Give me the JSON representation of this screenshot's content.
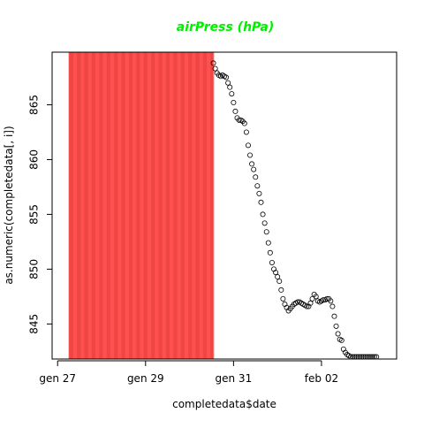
{
  "chart_data": {
    "type": "scatter",
    "title": "airPress (hPa)",
    "title_color": "#00ee00",
    "xlabel": "completedata$date",
    "ylabel": "as.numeric(completedata[, i])",
    "xlim": [
      "2016-01-26T21:00",
      "2016-02-03T17:00"
    ],
    "ylim": [
      841.8,
      869.8
    ],
    "x_ticks": [
      {
        "date": "2016-01-27",
        "label": "gen 27"
      },
      {
        "date": "2016-01-29",
        "label": "gen 29"
      },
      {
        "date": "2016-01-31",
        "label": "gen 31"
      },
      {
        "date": "2016-02-02",
        "label": "feb 02"
      }
    ],
    "y_ticks": [
      845,
      850,
      855,
      860,
      865
    ],
    "missing_band": {
      "from": "2016-01-27T06:00",
      "to": "2016-01-30T13:00",
      "color": "#ff5050",
      "stripe_color": "#e03c3c"
    },
    "grid": false,
    "legend": "none",
    "series": [
      {
        "marker": "open-circle",
        "color": "#000000",
        "x": [
          "2016-01-30T13:00",
          "2016-01-30T14:00",
          "2016-01-30T15:00",
          "2016-01-30T16:00",
          "2016-01-30T17:00",
          "2016-01-30T18:00",
          "2016-01-30T19:00",
          "2016-01-30T20:00",
          "2016-01-30T21:00",
          "2016-01-30T22:00",
          "2016-01-30T23:00",
          "2016-01-31T00:00",
          "2016-01-31T01:00",
          "2016-01-31T02:00",
          "2016-01-31T03:00",
          "2016-01-31T04:00",
          "2016-01-31T05:00",
          "2016-01-31T06:00",
          "2016-01-31T07:00",
          "2016-01-31T08:00",
          "2016-01-31T09:00",
          "2016-01-31T10:00",
          "2016-01-31T11:00",
          "2016-01-31T12:00",
          "2016-01-31T13:00",
          "2016-01-31T14:00",
          "2016-01-31T15:00",
          "2016-01-31T16:00",
          "2016-01-31T17:00",
          "2016-01-31T18:00",
          "2016-01-31T19:00",
          "2016-01-31T20:00",
          "2016-01-31T21:00",
          "2016-01-31T22:00",
          "2016-01-31T23:00",
          "2016-02-01T00:00",
          "2016-02-01T01:00",
          "2016-02-01T02:00",
          "2016-02-01T03:00",
          "2016-02-01T04:00",
          "2016-02-01T05:00",
          "2016-02-01T06:00",
          "2016-02-01T07:00",
          "2016-02-01T08:00",
          "2016-02-01T09:00",
          "2016-02-01T10:00",
          "2016-02-01T11:00",
          "2016-02-01T12:00",
          "2016-02-01T13:00",
          "2016-02-01T14:00",
          "2016-02-01T15:00",
          "2016-02-01T16:00",
          "2016-02-01T17:00",
          "2016-02-01T18:00",
          "2016-02-01T19:00",
          "2016-02-01T20:00",
          "2016-02-01T21:00",
          "2016-02-01T22:00",
          "2016-02-01T23:00",
          "2016-02-02T00:00",
          "2016-02-02T01:00",
          "2016-02-02T02:00",
          "2016-02-02T03:00",
          "2016-02-02T04:00",
          "2016-02-02T05:00",
          "2016-02-02T06:00",
          "2016-02-02T07:00",
          "2016-02-02T08:00",
          "2016-02-02T09:00",
          "2016-02-02T10:00",
          "2016-02-02T11:00",
          "2016-02-02T12:00",
          "2016-02-02T13:00",
          "2016-02-02T14:00",
          "2016-02-02T15:00",
          "2016-02-02T16:00",
          "2016-02-02T17:00",
          "2016-02-02T18:00",
          "2016-02-02T19:00",
          "2016-02-02T20:00",
          "2016-02-02T21:00",
          "2016-02-02T22:00",
          "2016-02-02T23:00",
          "2016-02-03T00:00",
          "2016-02-03T01:00",
          "2016-02-03T02:00",
          "2016-02-03T03:00",
          "2016-02-03T04:00",
          "2016-02-03T05:00",
          "2016-02-03T06:00"
        ],
        "y": [
          868.8,
          868.3,
          867.9,
          867.7,
          867.6,
          867.7,
          867.6,
          867.5,
          867.0,
          866.6,
          866.0,
          865.2,
          864.4,
          863.8,
          863.6,
          863.6,
          863.5,
          863.3,
          862.5,
          861.3,
          860.4,
          859.6,
          859.1,
          858.4,
          857.6,
          856.9,
          856.1,
          855.0,
          854.2,
          853.4,
          852.4,
          851.5,
          850.6,
          850.0,
          849.7,
          849.3,
          848.9,
          848.1,
          847.3,
          846.8,
          846.5,
          846.2,
          846.4,
          846.6,
          846.8,
          846.9,
          847.0,
          847.0,
          846.9,
          846.8,
          846.7,
          846.6,
          846.6,
          846.9,
          847.3,
          847.7,
          847.5,
          847.1,
          847.0,
          847.1,
          847.2,
          847.2,
          847.3,
          847.3,
          847.1,
          846.6,
          845.7,
          844.8,
          844.1,
          843.6,
          843.5,
          842.7,
          842.4,
          842.2,
          842.1,
          842.0,
          842.0,
          842.0,
          842.0,
          842.0,
          842.0,
          842.0,
          842.0,
          842.0,
          842.0,
          842.0,
          842.0,
          842.0,
          842.0,
          842.0
        ]
      }
    ]
  }
}
